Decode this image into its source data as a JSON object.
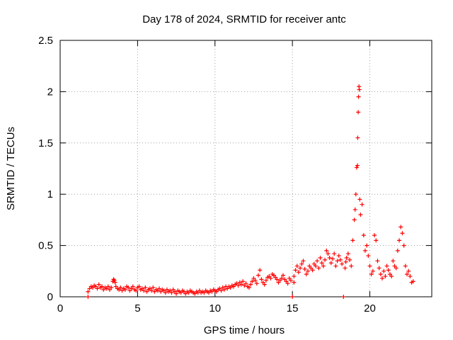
{
  "chart_data": {
    "type": "scatter",
    "title": "Day 178 of 2024, SRMTID for receiver antc",
    "xlabel": "GPS time / hours",
    "ylabel": "SRMTID / TECUs",
    "xlim": [
      0,
      24
    ],
    "ylim": [
      0,
      2.5
    ],
    "xticks": [
      0,
      5,
      10,
      15,
      20
    ],
    "xtick_labels": [
      "0",
      "5",
      "10",
      "15",
      "20"
    ],
    "yticks": [
      0,
      0.5,
      1,
      1.5,
      2,
      2.5
    ],
    "ytick_labels": [
      "0",
      "0.5",
      "1",
      "1.5",
      "2",
      "2.5"
    ],
    "grid": true,
    "marker": "plus",
    "color": "#ff0000",
    "series": [
      {
        "name": "SRMTID",
        "x": [
          1.8,
          1.8,
          1.9,
          2.0,
          2.1,
          2.2,
          2.3,
          2.4,
          2.5,
          2.6,
          2.7,
          2.8,
          2.9,
          3.0,
          3.1,
          3.2,
          3.3,
          3.4,
          3.45,
          3.5,
          3.55,
          3.6,
          3.7,
          3.8,
          3.9,
          4.0,
          4.1,
          4.2,
          4.3,
          4.4,
          4.5,
          4.6,
          4.7,
          4.8,
          4.9,
          5.0,
          5.1,
          5.2,
          5.3,
          5.4,
          5.5,
          5.6,
          5.7,
          5.8,
          5.9,
          6.0,
          6.1,
          6.2,
          6.3,
          6.4,
          6.5,
          6.6,
          6.7,
          6.8,
          6.9,
          7.0,
          7.1,
          7.2,
          7.3,
          7.4,
          7.5,
          7.6,
          7.7,
          7.8,
          7.9,
          8.0,
          8.1,
          8.2,
          8.3,
          8.4,
          8.5,
          8.6,
          8.7,
          8.8,
          8.9,
          9.0,
          9.1,
          9.2,
          9.3,
          9.4,
          9.5,
          9.6,
          9.7,
          9.8,
          9.9,
          10.0,
          10.1,
          10.2,
          10.3,
          10.4,
          10.5,
          10.6,
          10.7,
          10.8,
          10.9,
          11.0,
          11.1,
          11.2,
          11.3,
          11.4,
          11.5,
          11.6,
          11.7,
          11.8,
          11.9,
          12.0,
          12.1,
          12.2,
          12.3,
          12.4,
          12.5,
          12.6,
          12.7,
          12.8,
          12.9,
          13.0,
          13.1,
          13.2,
          13.3,
          13.4,
          13.5,
          13.6,
          13.7,
          13.8,
          13.9,
          14.0,
          14.1,
          14.2,
          14.3,
          14.4,
          14.5,
          14.6,
          14.7,
          14.8,
          14.9,
          15.0,
          15.1,
          15.1,
          15.2,
          15.3,
          15.4,
          15.5,
          15.6,
          15.7,
          15.8,
          15.9,
          16.0,
          16.1,
          16.2,
          16.3,
          16.4,
          16.5,
          16.6,
          16.7,
          16.8,
          16.9,
          17.0,
          17.1,
          17.2,
          17.3,
          17.4,
          17.5,
          17.6,
          17.7,
          17.8,
          17.9,
          18.0,
          18.1,
          18.2,
          18.3,
          18.4,
          18.45,
          18.5,
          18.6,
          18.7,
          18.8,
          18.9,
          19.0,
          19.05,
          19.1,
          19.15,
          19.2,
          19.22,
          19.25,
          19.27,
          19.3,
          19.32,
          19.35,
          19.4,
          19.5,
          19.6,
          19.7,
          19.8,
          19.9,
          20.0,
          20.1,
          20.2,
          20.3,
          20.4,
          20.5,
          20.6,
          20.7,
          20.8,
          20.9,
          21.0,
          21.1,
          21.2,
          21.3,
          21.4,
          21.5,
          21.6,
          21.7,
          21.8,
          21.9,
          22.0,
          22.1,
          22.2,
          22.3,
          22.4,
          22.5,
          22.6,
          22.7,
          22.8
        ],
        "y": [
          0.0,
          0.05,
          0.08,
          0.1,
          0.09,
          0.11,
          0.1,
          0.08,
          0.12,
          0.09,
          0.1,
          0.07,
          0.09,
          0.08,
          0.1,
          0.07,
          0.09,
          0.15,
          0.17,
          0.16,
          0.14,
          0.1,
          0.08,
          0.07,
          0.09,
          0.06,
          0.08,
          0.07,
          0.1,
          0.09,
          0.06,
          0.08,
          0.1,
          0.07,
          0.06,
          0.09,
          0.1,
          0.07,
          0.08,
          0.06,
          0.09,
          0.05,
          0.07,
          0.08,
          0.06,
          0.09,
          0.05,
          0.07,
          0.06,
          0.08,
          0.05,
          0.07,
          0.06,
          0.04,
          0.07,
          0.05,
          0.06,
          0.04,
          0.07,
          0.05,
          0.03,
          0.06,
          0.05,
          0.04,
          0.06,
          0.05,
          0.03,
          0.05,
          0.04,
          0.06,
          0.05,
          0.04,
          0.03,
          0.05,
          0.04,
          0.06,
          0.04,
          0.05,
          0.04,
          0.06,
          0.05,
          0.04,
          0.06,
          0.05,
          0.07,
          0.06,
          0.05,
          0.07,
          0.08,
          0.06,
          0.09,
          0.07,
          0.1,
          0.08,
          0.1,
          0.09,
          0.11,
          0.1,
          0.12,
          0.13,
          0.11,
          0.14,
          0.12,
          0.15,
          0.11,
          0.13,
          0.1,
          0.09,
          0.12,
          0.15,
          0.18,
          0.16,
          0.13,
          0.21,
          0.26,
          0.17,
          0.14,
          0.12,
          0.16,
          0.19,
          0.2,
          0.18,
          0.22,
          0.21,
          0.19,
          0.17,
          0.14,
          0.16,
          0.18,
          0.21,
          0.17,
          0.15,
          0.13,
          0.18,
          0.16,
          0.0,
          0.14,
          0.2,
          0.26,
          0.3,
          0.24,
          0.28,
          0.32,
          0.35,
          0.27,
          0.22,
          0.25,
          0.3,
          0.28,
          0.26,
          0.32,
          0.3,
          0.35,
          0.28,
          0.38,
          0.33,
          0.3,
          0.36,
          0.45,
          0.42,
          0.38,
          0.33,
          0.37,
          0.42,
          0.3,
          0.35,
          0.4,
          0.36,
          0.32,
          0.0,
          0.28,
          0.34,
          0.38,
          0.42,
          0.36,
          0.3,
          0.55,
          0.75,
          0.85,
          1.0,
          1.26,
          1.28,
          1.55,
          1.8,
          1.95,
          2.05,
          2.02,
          0.95,
          0.8,
          0.9,
          0.6,
          0.45,
          0.5,
          0.4,
          0.3,
          0.22,
          0.25,
          0.6,
          0.55,
          0.35,
          0.28,
          0.22,
          0.18,
          0.25,
          0.2,
          0.3,
          0.26,
          0.22,
          0.2,
          0.35,
          0.3,
          0.28,
          0.45,
          0.55,
          0.68,
          0.62,
          0.5,
          0.3,
          0.22,
          0.25,
          0.2,
          0.14,
          0.15
        ]
      }
    ]
  }
}
